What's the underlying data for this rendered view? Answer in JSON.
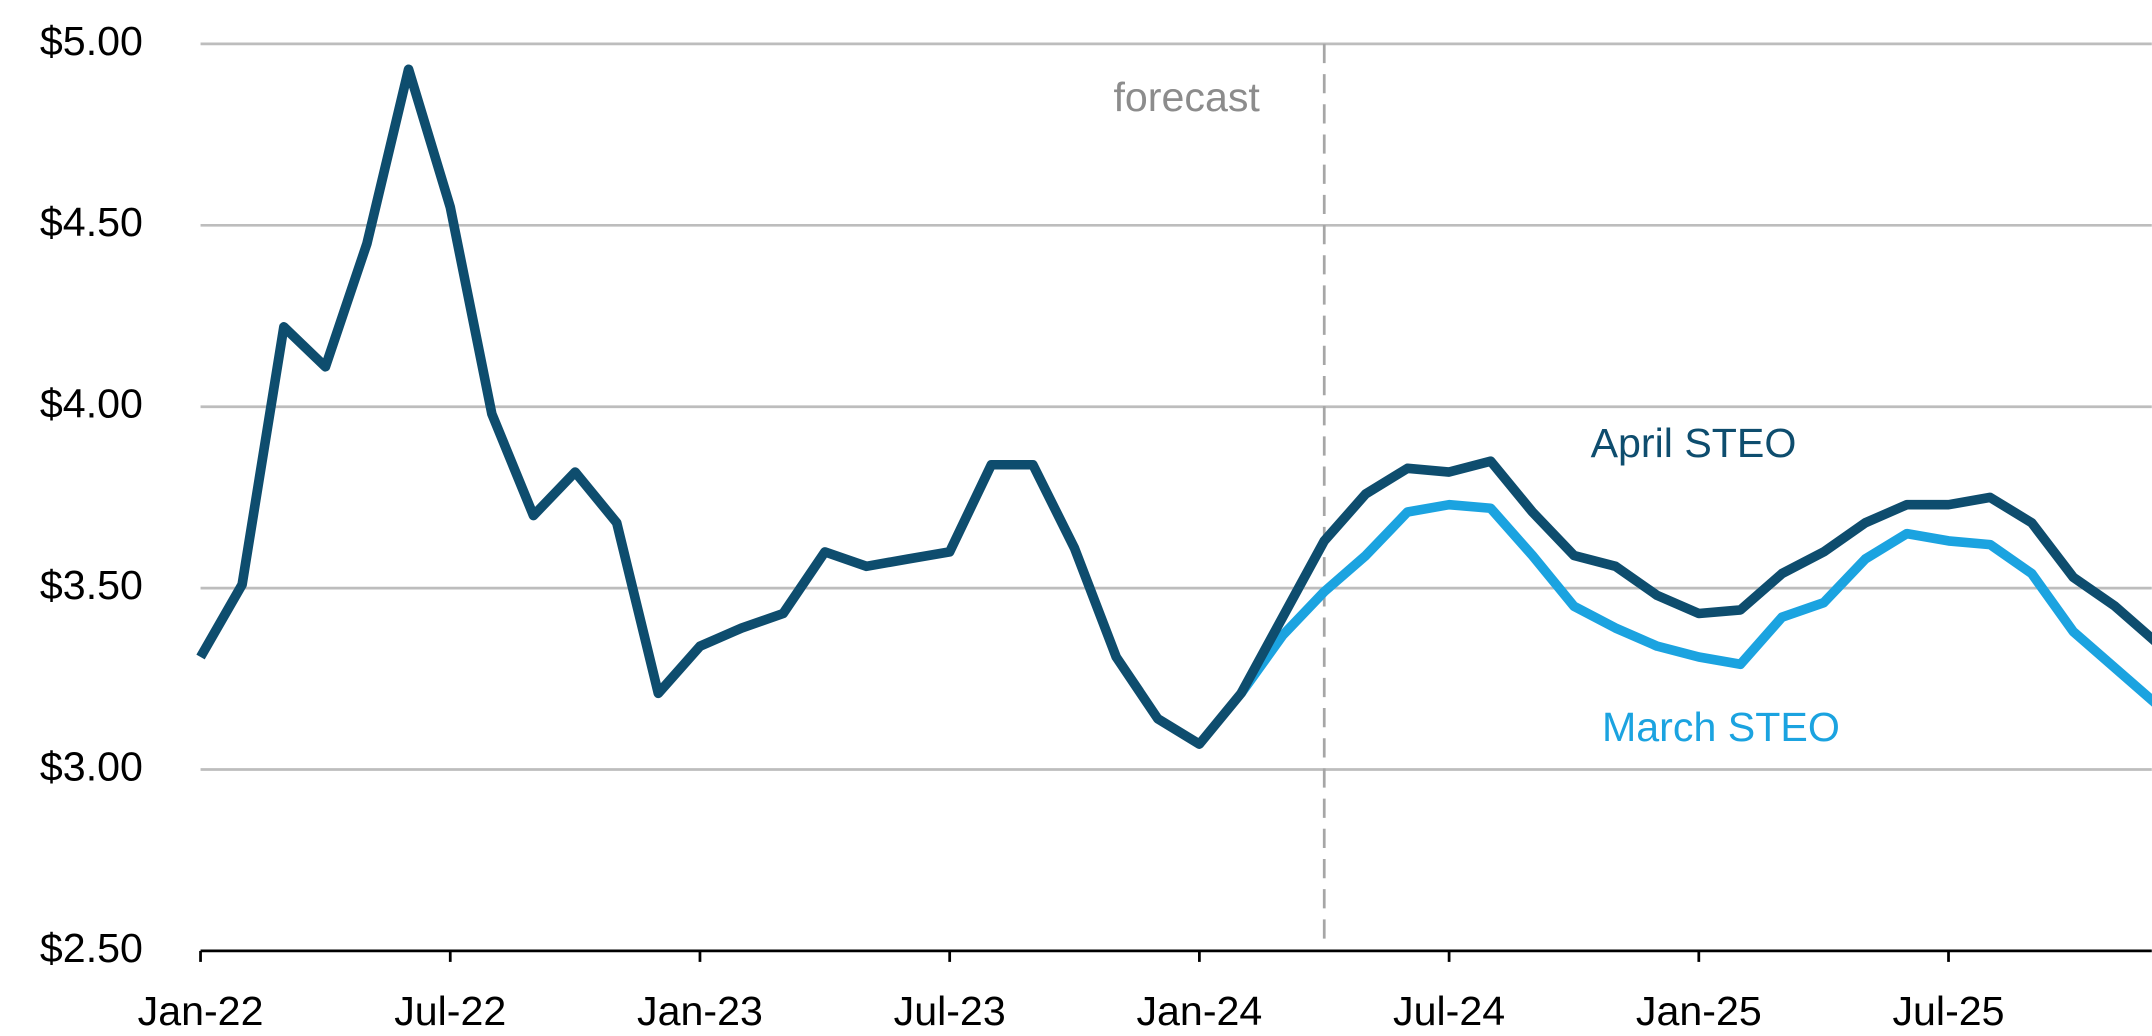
{
  "chart_data": {
    "type": "line",
    "categories": [
      "Jan-22",
      null,
      null,
      null,
      null,
      null,
      "Jul-22",
      null,
      null,
      null,
      null,
      null,
      "Jan-23",
      null,
      null,
      null,
      null,
      null,
      "Jul-23",
      null,
      null,
      null,
      null,
      null,
      "Jan-24",
      null,
      null,
      null,
      null,
      null,
      "Jul-24",
      null,
      null,
      null,
      null,
      null,
      "Jan-25",
      null,
      null,
      null,
      null,
      null,
      "Jul-25",
      null,
      null,
      null,
      null,
      null
    ],
    "series": [
      {
        "name": "April STEO",
        "color": "#0e4d6e",
        "values": [
          3.31,
          3.51,
          4.22,
          4.11,
          4.45,
          4.93,
          4.55,
          3.98,
          3.7,
          3.82,
          3.68,
          3.21,
          3.34,
          3.39,
          3.43,
          3.6,
          3.56,
          3.58,
          3.6,
          3.84,
          3.84,
          3.61,
          3.31,
          3.14,
          3.07,
          3.21,
          3.42,
          3.63,
          3.76,
          3.83,
          3.82,
          3.85,
          3.71,
          3.59,
          3.56,
          3.48,
          3.43,
          3.44,
          3.54,
          3.6,
          3.68,
          3.73,
          3.73,
          3.75,
          3.68,
          3.53,
          3.45,
          3.35
        ]
      },
      {
        "name": "March STEO",
        "color": "#1ba3e0",
        "values": [
          null,
          null,
          null,
          null,
          null,
          null,
          null,
          null,
          null,
          null,
          null,
          null,
          null,
          null,
          null,
          null,
          null,
          null,
          null,
          null,
          null,
          null,
          null,
          null,
          null,
          3.21,
          3.37,
          3.49,
          3.59,
          3.71,
          3.73,
          3.72,
          3.59,
          3.45,
          3.39,
          3.34,
          3.31,
          3.29,
          3.42,
          3.46,
          3.58,
          3.65,
          3.63,
          3.62,
          3.54,
          3.38,
          3.28,
          3.18
        ]
      }
    ],
    "ylim": [
      2.5,
      5.0
    ],
    "yticks": [
      {
        "value": 2.5,
        "label": "$2.50"
      },
      {
        "value": 3.0,
        "label": "$3.00"
      },
      {
        "value": 3.5,
        "label": "$3.50"
      },
      {
        "value": 4.0,
        "label": "$4.00"
      },
      {
        "value": 4.5,
        "label": "$4.50"
      },
      {
        "value": 5.0,
        "label": "$5.00"
      }
    ],
    "grid": true,
    "forecast": {
      "label": "forecast",
      "index": 27
    }
  }
}
